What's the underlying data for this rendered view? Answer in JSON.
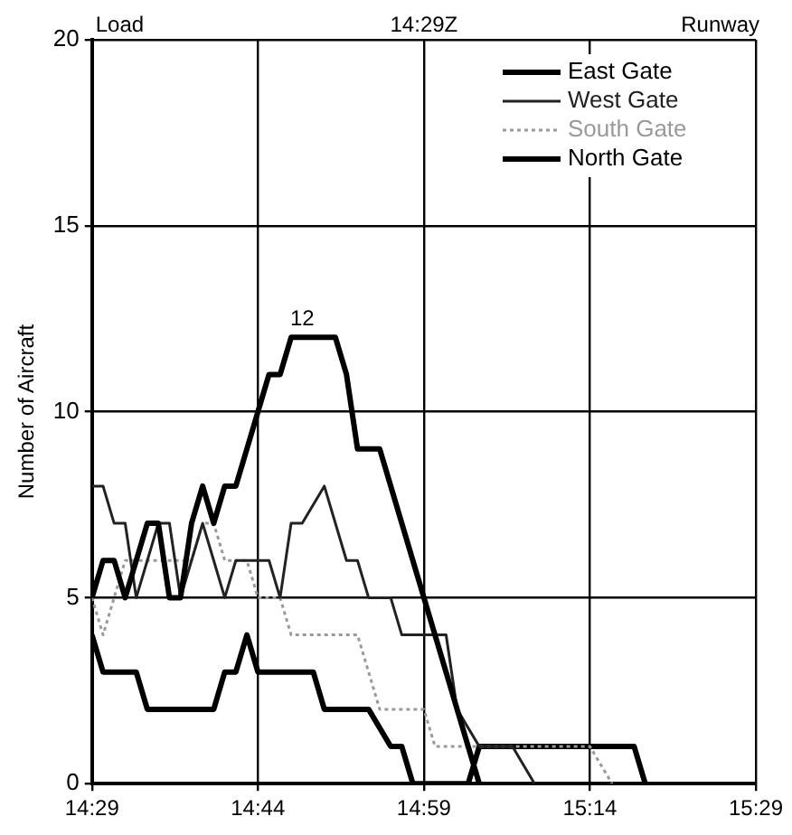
{
  "chart_data": {
    "type": "line",
    "ylabel": "Number of Aircraft",
    "annotations": [
      "Load",
      "14:29Z",
      "Runway",
      {
        "text": "12",
        "x": 14.8,
        "y": 12
      }
    ],
    "xlim": [
      14.4833,
      15.4833
    ],
    "xticks": [
      {
        "value": 14.4833,
        "label": "14:29"
      },
      {
        "value": 14.7333,
        "label": "14:44"
      },
      {
        "value": 14.9833,
        "label": "14:59"
      },
      {
        "value": 15.2333,
        "label": "15:14"
      },
      {
        "value": 15.4833,
        "label": "15:29"
      }
    ],
    "ylim": [
      0,
      20
    ],
    "yticks": [
      0,
      5,
      10,
      15,
      20
    ],
    "grid": true,
    "legend": "top right",
    "marker": "none",
    "series": [
      {
        "name": "East Gate",
        "color": "#000000",
        "x": [
          14.4833,
          14.5,
          14.5167,
          14.5333,
          14.55,
          14.5667,
          14.5833,
          14.6,
          14.6167,
          14.6333,
          14.65,
          14.6667,
          14.6833,
          14.7,
          14.7167,
          14.7333,
          14.75,
          14.7667,
          14.7833,
          14.85,
          14.8667,
          14.8833,
          14.9167,
          14.9833,
          15.05,
          15.0667
        ],
        "values": [
          5,
          6,
          6,
          5,
          6,
          7,
          7,
          5,
          5,
          7,
          8,
          7,
          8,
          8,
          9,
          10,
          11,
          11,
          12,
          12,
          11,
          9,
          9,
          5,
          1,
          0
        ]
      },
      {
        "name": "West Gate",
        "color": "#222222",
        "x": [
          14.4833,
          14.5,
          14.5167,
          14.5333,
          14.55,
          14.5667,
          14.5833,
          14.6,
          14.6167,
          14.6333,
          14.65,
          14.6667,
          14.6833,
          14.7,
          14.75,
          14.7667,
          14.7833,
          14.8,
          14.8333,
          14.8667,
          14.8833,
          14.9,
          14.9333,
          14.95,
          15.0167,
          15.0333,
          15.0667,
          15.1167,
          15.15
        ],
        "values": [
          8,
          8,
          7,
          7,
          5,
          6,
          7,
          7,
          5,
          6,
          7,
          6,
          5,
          6,
          6,
          5,
          7,
          7,
          8,
          6,
          6,
          5,
          5,
          4,
          4,
          2,
          1,
          1,
          0
        ]
      },
      {
        "name": "South Gate",
        "color": "#9a9a9a",
        "line_style": "dotted",
        "x": [
          14.4833,
          14.5,
          14.5167,
          14.5333,
          14.6333,
          14.65,
          14.6667,
          14.6833,
          14.7167,
          14.7333,
          14.7667,
          14.7833,
          14.8833,
          14.9167,
          14.9833,
          15,
          15.2333,
          15.2667
        ],
        "values": [
          5,
          4,
          5,
          6,
          6,
          7,
          7,
          6,
          6,
          5,
          5,
          4,
          4,
          2,
          2,
          1,
          1,
          0
        ]
      },
      {
        "name": "North Gate",
        "color": "#000000",
        "x": [
          14.4833,
          14.5,
          14.55,
          14.5667,
          14.6667,
          14.6833,
          14.7,
          14.7167,
          14.7333,
          14.8167,
          14.8333,
          14.9,
          14.9333,
          14.95,
          14.9667,
          15.05,
          15.0667,
          15.3,
          15.3167
        ],
        "values": [
          4,
          3,
          3,
          2,
          2,
          3,
          3,
          4,
          3,
          3,
          2,
          2,
          1,
          1,
          0,
          0,
          1,
          1,
          0
        ]
      }
    ]
  }
}
